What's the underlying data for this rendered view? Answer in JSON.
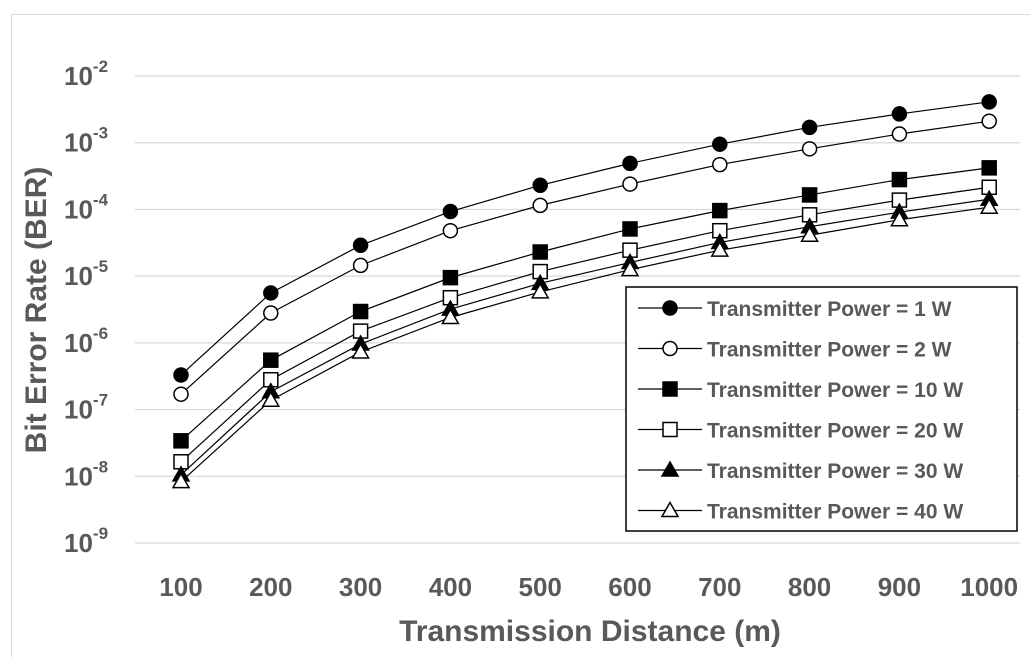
{
  "chart_data": {
    "type": "line",
    "xlabel": "Transmission Distance (m)",
    "ylabel": "Bit Error Rate (BER)",
    "x": [
      100,
      200,
      300,
      400,
      500,
      600,
      700,
      800,
      900,
      1000
    ],
    "y_scale": "log",
    "ylim": [
      1e-09,
      0.01
    ],
    "y_ticks": [
      {
        "base": "10",
        "exp": "-2",
        "value": 0.01
      },
      {
        "base": "10",
        "exp": "-3",
        "value": 0.001
      },
      {
        "base": "10",
        "exp": "-4",
        "value": 0.0001
      },
      {
        "base": "10",
        "exp": "-5",
        "value": 1e-05
      },
      {
        "base": "10",
        "exp": "-6",
        "value": 1e-06
      },
      {
        "base": "10",
        "exp": "-7",
        "value": 1e-07
      },
      {
        "base": "10",
        "exp": "-8",
        "value": 1e-08
      },
      {
        "base": "10",
        "exp": "-9",
        "value": 1e-09
      }
    ],
    "x_tick_labels": [
      "100",
      "200",
      "300",
      "400",
      "500",
      "600",
      "700",
      "800",
      "900",
      "1000"
    ],
    "grid": "horizontal",
    "legend_position": "bottom-right",
    "series": [
      {
        "name": "Transmitter Power = 1 W",
        "marker": "circle-filled",
        "values": [
          3.3e-07,
          5.6e-06,
          2.9e-05,
          9.3e-05,
          0.00023,
          0.00049,
          0.00095,
          0.0017,
          0.0027,
          0.0041
        ]
      },
      {
        "name": "Transmitter Power = 2 W",
        "marker": "circle-open",
        "values": [
          1.7e-07,
          2.8e-06,
          1.45e-05,
          4.8e-05,
          0.000115,
          0.00024,
          0.00047,
          0.00081,
          0.00135,
          0.0021
        ]
      },
      {
        "name": "Transmitter Power = 10 W",
        "marker": "square-filled",
        "values": [
          3.4e-08,
          5.5e-07,
          2.95e-06,
          9.5e-06,
          2.3e-05,
          5.1e-05,
          9.6e-05,
          0.000165,
          0.00028,
          0.00042
        ]
      },
      {
        "name": "Transmitter Power = 20 W",
        "marker": "square-open",
        "values": [
          1.65e-08,
          2.8e-07,
          1.5e-06,
          4.75e-06,
          1.17e-05,
          2.45e-05,
          4.8e-05,
          8.3e-05,
          0.000138,
          0.000215
        ]
      },
      {
        "name": "Transmitter Power = 30 W",
        "marker": "triangle-filled",
        "values": [
          1.05e-08,
          1.85e-07,
          9.6e-07,
          3.2e-06,
          7.8e-06,
          1.6e-05,
          3.2e-05,
          5.5e-05,
          9.1e-05,
          0.000142
        ]
      },
      {
        "name": "Transmitter Power = 40 W",
        "marker": "triangle-open",
        "values": [
          8.3e-09,
          1.38e-07,
          7.3e-07,
          2.4e-06,
          5.8e-06,
          1.25e-05,
          2.45e-05,
          4.1e-05,
          7e-05,
          0.000108
        ]
      }
    ],
    "colors": {
      "series": "#000000",
      "grid": "#d9d9d9",
      "text": "#595959"
    }
  }
}
